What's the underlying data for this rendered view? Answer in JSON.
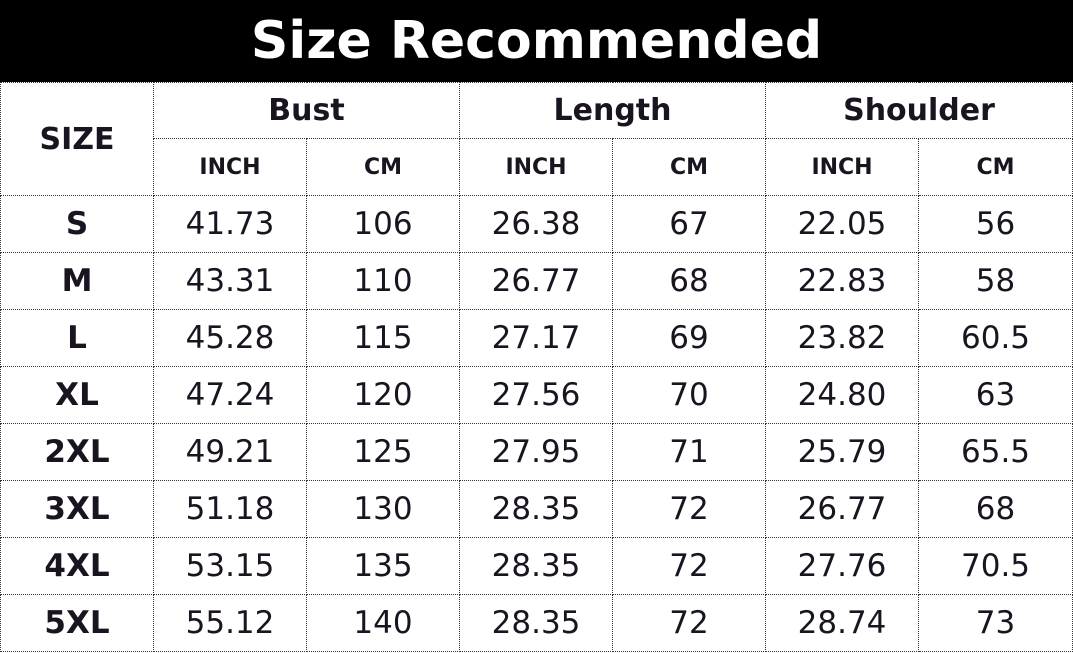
{
  "title": "Size Recommended",
  "header": {
    "size": "SIZE",
    "groups": [
      "Bust",
      "Length",
      "Shoulder"
    ],
    "units": [
      "INCH",
      "CM",
      "INCH",
      "CM",
      "INCH",
      "CM"
    ]
  },
  "rows": [
    [
      "S",
      "41.73",
      "106",
      "26.38",
      "67",
      "22.05",
      "56"
    ],
    [
      "M",
      "43.31",
      "110",
      "26.77",
      "68",
      "22.83",
      "58"
    ],
    [
      "L",
      "45.28",
      "115",
      "27.17",
      "69",
      "23.82",
      "60.5"
    ],
    [
      "XL",
      "47.24",
      "120",
      "27.56",
      "70",
      "24.80",
      "63"
    ],
    [
      "2XL",
      "49.21",
      "125",
      "27.95",
      "71",
      "25.79",
      "65.5"
    ],
    [
      "3XL",
      "51.18",
      "130",
      "28.35",
      "72",
      "26.77",
      "68"
    ],
    [
      "4XL",
      "53.15",
      "135",
      "28.35",
      "72",
      "27.76",
      "70.5"
    ],
    [
      "5XL",
      "55.12",
      "140",
      "28.35",
      "72",
      "28.74",
      "73"
    ]
  ]
}
